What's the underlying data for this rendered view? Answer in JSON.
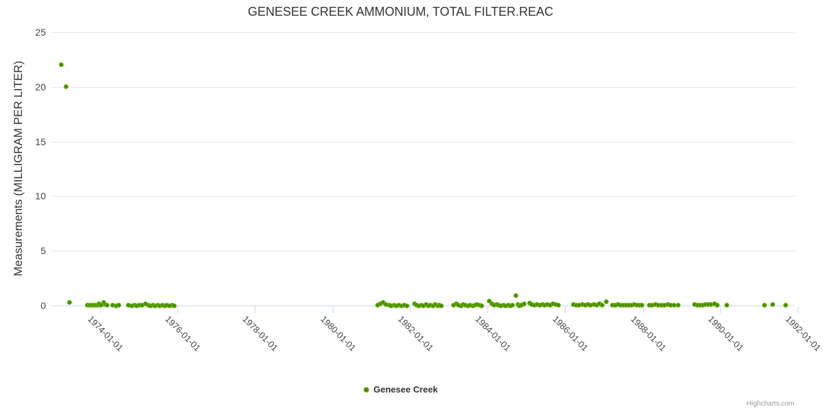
{
  "title": "GENESEE CREEK AMMONIUM, TOTAL FILTER.REAC",
  "credits": "Highcharts.com",
  "legend": {
    "items": [
      {
        "label": "Genesee Creek",
        "color": "#5ea10a"
      }
    ]
  },
  "chart_data": {
    "type": "scatter",
    "title": "GENESEE CREEK AMMONIUM, TOTAL FILTER.REAC",
    "xlabel": "",
    "ylabel": "Measurements (MILLIGRAM PER LITER)",
    "x_unit": "decimal_year",
    "xlim": [
      1972.745,
      1991.93
    ],
    "ylim": [
      0,
      25
    ],
    "grid": true,
    "legend_position": "bottom-center",
    "marker_color": "#5ea10a",
    "y_ticks": [
      0,
      5,
      10,
      15,
      20,
      25
    ],
    "x_ticks": [
      {
        "value": 1974,
        "label": "1974-01-01"
      },
      {
        "value": 1976,
        "label": "1976-01-01"
      },
      {
        "value": 1978,
        "label": "1978-01-01"
      },
      {
        "value": 1980,
        "label": "1980-01-01"
      },
      {
        "value": 1982,
        "label": "1982-01-01"
      },
      {
        "value": 1984,
        "label": "1984-01-01"
      },
      {
        "value": 1986,
        "label": "1986-01-01"
      },
      {
        "value": 1988,
        "label": "1988-01-01"
      },
      {
        "value": 1990,
        "label": "1990-01-01"
      },
      {
        "value": 1992,
        "label": "1992-01-01"
      }
    ],
    "series": [
      {
        "name": "Genesee Creek",
        "color": "#5ea10a",
        "points": [
          [
            1973.0,
            22
          ],
          [
            1973.12,
            20
          ],
          [
            1973.22,
            0.27
          ],
          [
            1973.67,
            0.02
          ],
          [
            1973.72,
            0.01
          ],
          [
            1973.78,
            0.02
          ],
          [
            1973.83,
            0.06
          ],
          [
            1973.88,
            0.01
          ],
          [
            1973.93,
            0.06
          ],
          [
            1973.98,
            0.17
          ],
          [
            1974.03,
            0.05
          ],
          [
            1974.09,
            0.27
          ],
          [
            1974.14,
            0.08
          ],
          [
            1974.19,
            0.02
          ],
          [
            1974.33,
            0.01
          ],
          [
            1974.41,
            0
          ],
          [
            1974.48,
            0.02
          ],
          [
            1974.74,
            0.03
          ],
          [
            1974.82,
            0
          ],
          [
            1974.89,
            0.02
          ],
          [
            1974.95,
            0
          ],
          [
            1975.01,
            0.03
          ],
          [
            1975.08,
            0.01
          ],
          [
            1975.18,
            0.17
          ],
          [
            1975.25,
            0.03
          ],
          [
            1975.3,
            0
          ],
          [
            1975.36,
            0.02
          ],
          [
            1975.42,
            0
          ],
          [
            1975.49,
            0.02
          ],
          [
            1975.55,
            0
          ],
          [
            1975.61,
            0.03
          ],
          [
            1975.67,
            0
          ],
          [
            1975.73,
            0.02
          ],
          [
            1975.8,
            0
          ],
          [
            1975.86,
            0.01
          ],
          [
            1975.92,
            0
          ],
          [
            1981.16,
            0.06
          ],
          [
            1981.24,
            0.17
          ],
          [
            1981.31,
            0.27
          ],
          [
            1981.38,
            0.11
          ],
          [
            1981.46,
            0.02
          ],
          [
            1981.52,
            0
          ],
          [
            1981.58,
            0.02
          ],
          [
            1981.64,
            0
          ],
          [
            1981.71,
            0.01
          ],
          [
            1981.78,
            0
          ],
          [
            1981.85,
            0.02
          ],
          [
            1981.92,
            0
          ],
          [
            1982.11,
            0.17
          ],
          [
            1982.17,
            0.02
          ],
          [
            1982.23,
            0
          ],
          [
            1982.29,
            0.06
          ],
          [
            1982.35,
            0
          ],
          [
            1982.41,
            0.1
          ],
          [
            1982.47,
            0
          ],
          [
            1982.53,
            0.06
          ],
          [
            1982.59,
            0
          ],
          [
            1982.65,
            0.1
          ],
          [
            1982.71,
            0
          ],
          [
            1982.76,
            0.02
          ],
          [
            1982.8,
            0
          ],
          [
            1983.13,
            0.06
          ],
          [
            1983.19,
            0.14
          ],
          [
            1983.25,
            0.06
          ],
          [
            1983.31,
            0
          ],
          [
            1983.37,
            0.1
          ],
          [
            1983.43,
            0.04
          ],
          [
            1983.49,
            0
          ],
          [
            1983.55,
            0.06
          ],
          [
            1983.61,
            0
          ],
          [
            1983.67,
            0.04
          ],
          [
            1983.73,
            0.1
          ],
          [
            1983.79,
            0.03
          ],
          [
            1983.84,
            0
          ],
          [
            1984.05,
            0.38
          ],
          [
            1984.11,
            0.17
          ],
          [
            1984.17,
            0.02
          ],
          [
            1984.23,
            0.1
          ],
          [
            1984.29,
            0.04
          ],
          [
            1984.35,
            0
          ],
          [
            1984.41,
            0.06
          ],
          [
            1984.47,
            0
          ],
          [
            1984.53,
            0.04
          ],
          [
            1984.59,
            0
          ],
          [
            1984.65,
            0.06
          ],
          [
            1984.73,
            0.9
          ],
          [
            1984.78,
            0.1
          ],
          [
            1984.82,
            0
          ],
          [
            1984.87,
            0.06
          ],
          [
            1984.94,
            0.13
          ],
          [
            1985.08,
            0.2
          ],
          [
            1985.14,
            0.1
          ],
          [
            1985.21,
            0.04
          ],
          [
            1985.28,
            0.08
          ],
          [
            1985.35,
            0.03
          ],
          [
            1985.42,
            0.08
          ],
          [
            1985.48,
            0.03
          ],
          [
            1985.55,
            0.1
          ],
          [
            1985.62,
            0.04
          ],
          [
            1985.69,
            0.14
          ],
          [
            1985.76,
            0.08
          ],
          [
            1985.82,
            0.03
          ],
          [
            1986.21,
            0.1
          ],
          [
            1986.28,
            0.06
          ],
          [
            1986.36,
            0.03
          ],
          [
            1986.44,
            0.1
          ],
          [
            1986.52,
            0.05
          ],
          [
            1986.59,
            0.12
          ],
          [
            1986.66,
            0.03
          ],
          [
            1986.74,
            0.08
          ],
          [
            1986.81,
            0.03
          ],
          [
            1986.88,
            0.15
          ],
          [
            1986.95,
            0.06
          ],
          [
            1987.07,
            0.33
          ],
          [
            1987.23,
            0.06
          ],
          [
            1987.3,
            0.03
          ],
          [
            1987.37,
            0.08
          ],
          [
            1987.44,
            0.03
          ],
          [
            1987.51,
            0.06
          ],
          [
            1987.58,
            0.01
          ],
          [
            1987.65,
            0.06
          ],
          [
            1987.72,
            0.02
          ],
          [
            1987.79,
            0.08
          ],
          [
            1987.86,
            0.03
          ],
          [
            1987.93,
            0.06
          ],
          [
            1987.99,
            0.02
          ],
          [
            1988.17,
            0.06
          ],
          [
            1988.25,
            0.03
          ],
          [
            1988.33,
            0.08
          ],
          [
            1988.41,
            0.02
          ],
          [
            1988.49,
            0.06
          ],
          [
            1988.57,
            0.03
          ],
          [
            1988.65,
            0.08
          ],
          [
            1988.73,
            0.02
          ],
          [
            1988.82,
            0.05
          ],
          [
            1988.91,
            0.02
          ],
          [
            1989.35,
            0.08
          ],
          [
            1989.42,
            0.03
          ],
          [
            1989.49,
            0.06
          ],
          [
            1989.56,
            0.02
          ],
          [
            1989.63,
            0.1
          ],
          [
            1989.7,
            0.12
          ],
          [
            1989.77,
            0.1
          ],
          [
            1989.85,
            0.14
          ],
          [
            1989.92,
            0.06
          ],
          [
            1990.18,
            0.06
          ],
          [
            1991.15,
            0.06
          ],
          [
            1991.35,
            0.08
          ],
          [
            1991.7,
            0.03
          ]
        ]
      }
    ]
  }
}
